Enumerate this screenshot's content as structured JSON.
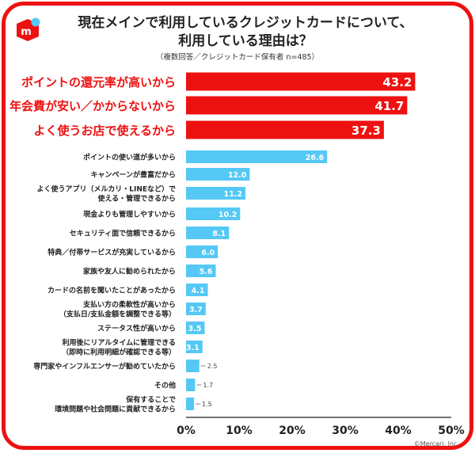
{
  "title_line1": "現在メインで利用しているクレジットカードについて、",
  "title_line2": "利用している理由は？",
  "subtitle": "（複数回答／クレジットカード保有者 n=485）",
  "credit": "©Mercari, Inc.",
  "logo_text": "m",
  "colors": {
    "highlight": "#ee1111",
    "bar": "#55c8f5",
    "frame": "#ee1111"
  },
  "chart_data": {
    "type": "bar",
    "orientation": "horizontal",
    "xlim": [
      0,
      50
    ],
    "ticks": [
      "0%",
      "10%",
      "20%",
      "30%",
      "40%",
      "50%"
    ],
    "tick_values": [
      0,
      10,
      20,
      30,
      40,
      50
    ],
    "categories": [
      [
        "ポイントの還元率が高いから"
      ],
      [
        "年会費が安い／かからないから"
      ],
      [
        "よく使うお店で使えるから"
      ],
      [
        "ポイントの使い道が多いから"
      ],
      [
        "キャンペーンが豊富だから"
      ],
      [
        "よく使うアプリ（メルカリ・LINEなど）で",
        "使える・管理できるから"
      ],
      [
        "現金よりも管理しやすいから"
      ],
      [
        "セキュリティ面で信頼できるから"
      ],
      [
        "特典／付帯サービスが充実しているから"
      ],
      [
        "家族や友人に勧められたから"
      ],
      [
        "カードの名前を聞いたことがあったから"
      ],
      [
        "支払い方の柔軟性が高いから",
        "（支払日/支払金額を調整できる等）"
      ],
      [
        "ステータス性が高いから"
      ],
      [
        "利用後にリアルタイムに管理できる",
        "（即時に利用明細が確認できる等）"
      ],
      [
        "専門家やインフルエンサーが勧めていたから"
      ],
      [
        "その他"
      ],
      [
        "保有することで",
        "環境問題や社会問題に貢献できるから"
      ]
    ],
    "values": [
      43.2,
      41.7,
      37.3,
      26.6,
      12.0,
      11.2,
      10.2,
      8.1,
      6.0,
      5.6,
      4.1,
      3.7,
      3.5,
      3.1,
      2.5,
      1.7,
      1.5
    ],
    "value_labels": [
      "43.2",
      "41.7",
      "37.3",
      "26.6",
      "12.0",
      "11.2",
      "10.2",
      "8.1",
      "6.0",
      "5.6",
      "4.1",
      "3.7",
      "3.5",
      "3.1",
      "2.5",
      "1.7",
      "1.5"
    ],
    "highlighted_top": 3
  }
}
